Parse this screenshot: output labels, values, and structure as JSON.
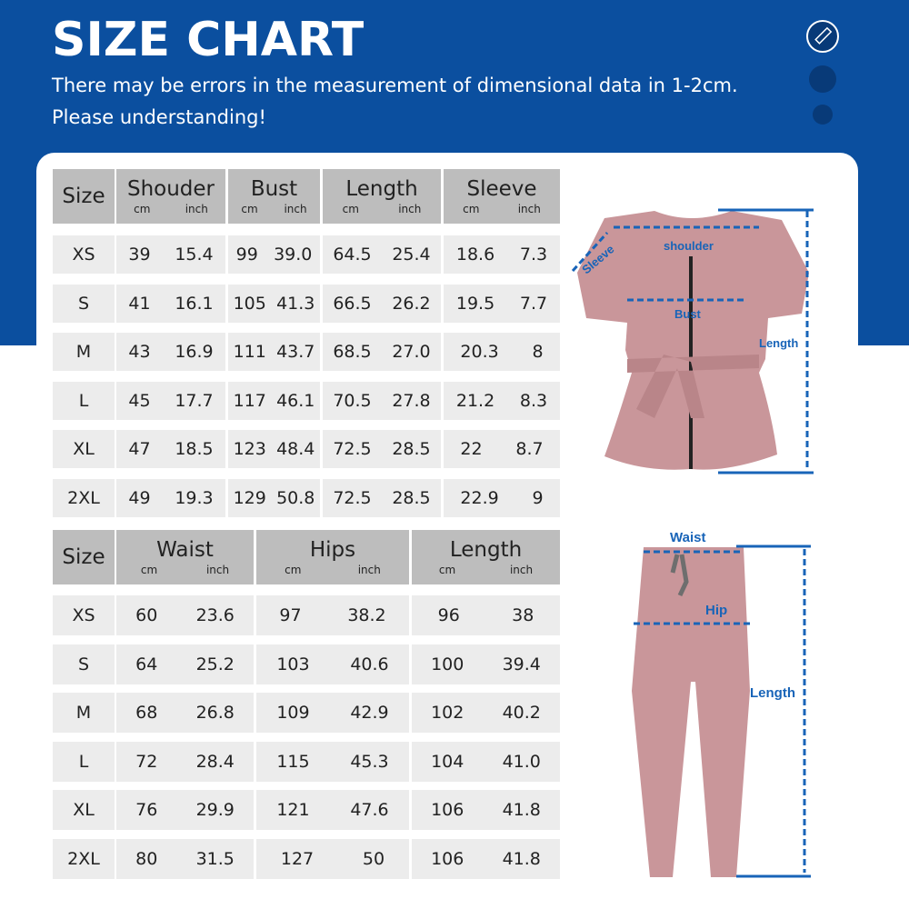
{
  "header": {
    "title": "SIZE CHART",
    "line1": "There may be errors in the measurement of dimensional data in 1-2cm.",
    "line2": "Please understanding!",
    "icon": "ruler-icon"
  },
  "colors": {
    "brand": "#0b4f9f",
    "header_cell": "#bdbdbd",
    "body_cell": "#ececec",
    "garment": "#c9969a",
    "measure": "#1864b8"
  },
  "top_table": {
    "size_label": "Size",
    "columns": [
      {
        "name": "Shouder",
        "units": [
          "cm",
          "inch"
        ]
      },
      {
        "name": "Bust",
        "units": [
          "cm",
          "inch"
        ]
      },
      {
        "name": "Length",
        "units": [
          "cm",
          "inch"
        ]
      },
      {
        "name": "Sleeve",
        "units": [
          "cm",
          "inch"
        ]
      }
    ],
    "rows": [
      {
        "size": "XS",
        "values": [
          [
            "39",
            "15.4"
          ],
          [
            "99",
            "39.0"
          ],
          [
            "64.5",
            "25.4"
          ],
          [
            "18.6",
            "7.3"
          ]
        ]
      },
      {
        "size": "S",
        "values": [
          [
            "41",
            "16.1"
          ],
          [
            "105",
            "41.3"
          ],
          [
            "66.5",
            "26.2"
          ],
          [
            "19.5",
            "7.7"
          ]
        ]
      },
      {
        "size": "M",
        "values": [
          [
            "43",
            "16.9"
          ],
          [
            "111",
            "43.7"
          ],
          [
            "68.5",
            "27.0"
          ],
          [
            "20.3",
            "8"
          ]
        ]
      },
      {
        "size": "L",
        "values": [
          [
            "45",
            "17.7"
          ],
          [
            "117",
            "46.1"
          ],
          [
            "70.5",
            "27.8"
          ],
          [
            "21.2",
            "8.3"
          ]
        ]
      },
      {
        "size": "XL",
        "values": [
          [
            "47",
            "18.5"
          ],
          [
            "123",
            "48.4"
          ],
          [
            "72.5",
            "28.5"
          ],
          [
            "22",
            "8.7"
          ]
        ]
      },
      {
        "size": "2XL",
        "values": [
          [
            "49",
            "19.3"
          ],
          [
            "129",
            "50.8"
          ],
          [
            "72.5",
            "28.5"
          ],
          [
            "22.9",
            "9"
          ]
        ]
      }
    ]
  },
  "bottom_table": {
    "size_label": "Size",
    "columns": [
      {
        "name": "Waist",
        "units": [
          "cm",
          "inch"
        ]
      },
      {
        "name": "Hips",
        "units": [
          "cm",
          "inch"
        ]
      },
      {
        "name": "Length",
        "units": [
          "cm",
          "inch"
        ]
      }
    ],
    "rows": [
      {
        "size": "XS",
        "values": [
          [
            "60",
            "23.6"
          ],
          [
            "97",
            "38.2"
          ],
          [
            "96",
            "38"
          ]
        ]
      },
      {
        "size": "S",
        "values": [
          [
            "64",
            "25.2"
          ],
          [
            "103",
            "40.6"
          ],
          [
            "100",
            "39.4"
          ]
        ]
      },
      {
        "size": "M",
        "values": [
          [
            "68",
            "26.8"
          ],
          [
            "109",
            "42.9"
          ],
          [
            "102",
            "40.2"
          ]
        ]
      },
      {
        "size": "L",
        "values": [
          [
            "72",
            "28.4"
          ],
          [
            "115",
            "45.3"
          ],
          [
            "104",
            "41.0"
          ]
        ]
      },
      {
        "size": "XL",
        "values": [
          [
            "76",
            "29.9"
          ],
          [
            "121",
            "47.6"
          ],
          [
            "106",
            "41.8"
          ]
        ]
      },
      {
        "size": "2XL",
        "values": [
          [
            "80",
            "31.5"
          ],
          [
            "127",
            "50"
          ],
          [
            "106",
            "41.8"
          ]
        ]
      }
    ]
  },
  "top_figure": {
    "labels": {
      "shoulder": "shoulder",
      "sleeve": "Sleeve",
      "bust": "Bust",
      "length": "Length"
    }
  },
  "bottom_figure": {
    "labels": {
      "waist": "Waist",
      "hip": "Hip",
      "length": "Length"
    }
  }
}
